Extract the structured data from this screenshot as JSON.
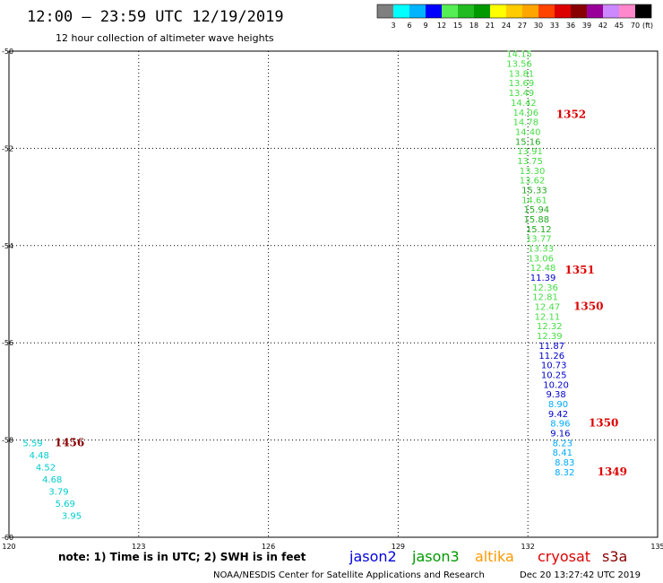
{
  "header": {
    "title": "12:00 — 23:59 UTC 12/19/2019",
    "subtitle": "12 hour collection of altimeter wave heights"
  },
  "colorbar": {
    "unit": "(ft)",
    "labels": [
      "3",
      "6",
      "9",
      "12",
      "15",
      "18",
      "21",
      "24",
      "27",
      "30",
      "33",
      "36",
      "39",
      "42",
      "45",
      "70"
    ],
    "colors": [
      "#7f7f7f",
      "#00ffff",
      "#00b4ff",
      "#0000ff",
      "#55ee55",
      "#22bb22",
      "#009900",
      "#ffff00",
      "#ffcc00",
      "#ffa500",
      "#ff4400",
      "#dd0000",
      "#880000",
      "#990099",
      "#cc88ff",
      "#ff88cc",
      "#000000"
    ]
  },
  "chart_data": {
    "type": "scatter",
    "xlim": [
      120,
      135
    ],
    "ylim": [
      -60,
      -50
    ],
    "x_ticks": [
      "120",
      "123",
      "126",
      "129",
      "132",
      "135"
    ],
    "y_ticks": [
      "-50",
      "-52",
      "-54",
      "-56",
      "-58",
      "-60"
    ],
    "grid": true,
    "observations": [
      {
        "lon": 131.8,
        "lat": -50.05,
        "text": "14.15",
        "color": "#44dd44"
      },
      {
        "lon": 131.8,
        "lat": -50.25,
        "text": "13.56",
        "color": "#44dd44"
      },
      {
        "lon": 131.85,
        "lat": -50.45,
        "text": "13.81",
        "color": "#44dd44"
      },
      {
        "lon": 131.85,
        "lat": -50.65,
        "text": "13.69",
        "color": "#44dd44"
      },
      {
        "lon": 131.85,
        "lat": -50.85,
        "text": "13.49",
        "color": "#44dd44"
      },
      {
        "lon": 131.9,
        "lat": -51.05,
        "text": "14.42",
        "color": "#44dd44"
      },
      {
        "lon": 131.95,
        "lat": -51.25,
        "text": "14.06",
        "color": "#44dd44"
      },
      {
        "lon": 131.95,
        "lat": -51.45,
        "text": "14.78",
        "color": "#44dd44"
      },
      {
        "lon": 132.0,
        "lat": -51.65,
        "text": "14.40",
        "color": "#44dd44"
      },
      {
        "lon": 132.0,
        "lat": -51.85,
        "text": "15.16",
        "color": "#22aa22"
      },
      {
        "lon": 132.05,
        "lat": -52.05,
        "text": "13.91",
        "color": "#44dd44"
      },
      {
        "lon": 132.05,
        "lat": -52.25,
        "text": "13.75",
        "color": "#44dd44"
      },
      {
        "lon": 132.1,
        "lat": -52.45,
        "text": "13.30",
        "color": "#44dd44"
      },
      {
        "lon": 132.1,
        "lat": -52.65,
        "text": "13.62",
        "color": "#44dd44"
      },
      {
        "lon": 132.15,
        "lat": -52.85,
        "text": "15.33",
        "color": "#22aa22"
      },
      {
        "lon": 132.15,
        "lat": -53.05,
        "text": "14.61",
        "color": "#44dd44"
      },
      {
        "lon": 132.2,
        "lat": -53.25,
        "text": "15.94",
        "color": "#22aa22"
      },
      {
        "lon": 132.2,
        "lat": -53.45,
        "text": "15.88",
        "color": "#22aa22"
      },
      {
        "lon": 132.25,
        "lat": -53.65,
        "text": "15.12",
        "color": "#22aa22"
      },
      {
        "lon": 132.25,
        "lat": -53.85,
        "text": "13.77",
        "color": "#44dd44"
      },
      {
        "lon": 132.3,
        "lat": -54.05,
        "text": "13.33",
        "color": "#44dd44"
      },
      {
        "lon": 132.3,
        "lat": -54.25,
        "text": "13.06",
        "color": "#44dd44"
      },
      {
        "lon": 132.35,
        "lat": -54.45,
        "text": "12.48",
        "color": "#44dd44"
      },
      {
        "lon": 132.35,
        "lat": -54.65,
        "text": "11.39",
        "color": "#0000cc"
      },
      {
        "lon": 132.4,
        "lat": -54.85,
        "text": "12.36",
        "color": "#44dd44"
      },
      {
        "lon": 132.4,
        "lat": -55.05,
        "text": "12.81",
        "color": "#44dd44"
      },
      {
        "lon": 132.45,
        "lat": -55.25,
        "text": "12.47",
        "color": "#44dd44"
      },
      {
        "lon": 132.45,
        "lat": -55.45,
        "text": "12.11",
        "color": "#44dd44"
      },
      {
        "lon": 132.5,
        "lat": -55.65,
        "text": "12.32",
        "color": "#44dd44"
      },
      {
        "lon": 132.5,
        "lat": -55.85,
        "text": "12.39",
        "color": "#44dd44"
      },
      {
        "lon": 132.55,
        "lat": -56.05,
        "text": "11.87",
        "color": "#0000cc"
      },
      {
        "lon": 132.55,
        "lat": -56.25,
        "text": "11.26",
        "color": "#0000cc"
      },
      {
        "lon": 132.6,
        "lat": -56.45,
        "text": "10.73",
        "color": "#0000cc"
      },
      {
        "lon": 132.6,
        "lat": -56.65,
        "text": "10.25",
        "color": "#0000cc"
      },
      {
        "lon": 132.65,
        "lat": -56.85,
        "text": "10.20",
        "color": "#0000cc"
      },
      {
        "lon": 132.65,
        "lat": -57.05,
        "text": "9.38",
        "color": "#0000cc"
      },
      {
        "lon": 132.7,
        "lat": -57.25,
        "text": "8.90",
        "color": "#00aaff"
      },
      {
        "lon": 132.7,
        "lat": -57.45,
        "text": "9.42",
        "color": "#0000cc"
      },
      {
        "lon": 132.75,
        "lat": -57.65,
        "text": "8.96",
        "color": "#00aaff"
      },
      {
        "lon": 132.75,
        "lat": -57.85,
        "text": "9.16",
        "color": "#0000cc"
      },
      {
        "lon": 132.8,
        "lat": -58.05,
        "text": "8.23",
        "color": "#00aaff"
      },
      {
        "lon": 132.8,
        "lat": -58.25,
        "text": "8.41",
        "color": "#00aaff"
      },
      {
        "lon": 132.85,
        "lat": -58.45,
        "text": "8.83",
        "color": "#00aaff"
      },
      {
        "lon": 132.85,
        "lat": -58.65,
        "text": "8.32",
        "color": "#00aaff"
      },
      {
        "lon": 120.55,
        "lat": -58.05,
        "text": "5.59",
        "color": "#00cccc"
      },
      {
        "lon": 120.7,
        "lat": -58.3,
        "text": "4.48",
        "color": "#00cccc"
      },
      {
        "lon": 120.85,
        "lat": -58.55,
        "text": "4.52",
        "color": "#00cccc"
      },
      {
        "lon": 121.0,
        "lat": -58.8,
        "text": "4.68",
        "color": "#00cccc"
      },
      {
        "lon": 121.15,
        "lat": -59.05,
        "text": "3.79",
        "color": "#00cccc"
      },
      {
        "lon": 121.3,
        "lat": -59.3,
        "text": "5.69",
        "color": "#00cccc"
      },
      {
        "lon": 121.45,
        "lat": -59.55,
        "text": "3.95",
        "color": "#00cccc"
      }
    ],
    "timestamps": [
      {
        "lon": 133.0,
        "lat": -51.3,
        "text": "1352",
        "color": "#dd0000"
      },
      {
        "lon": 133.2,
        "lat": -54.5,
        "text": "1351",
        "color": "#dd0000"
      },
      {
        "lon": 133.4,
        "lat": -55.25,
        "text": "1350",
        "color": "#dd0000"
      },
      {
        "lon": 133.75,
        "lat": -57.65,
        "text": "1350",
        "color": "#dd0000"
      },
      {
        "lon": 133.95,
        "lat": -58.65,
        "text": "1349",
        "color": "#dd0000"
      },
      {
        "lon": 121.4,
        "lat": -58.05,
        "text": "1456",
        "color": "#880000"
      }
    ]
  },
  "footer": {
    "note": "note:  1) Time is in UTC;  2) SWH is in feet",
    "legend": [
      {
        "name": "jason2",
        "color": "#0000dd"
      },
      {
        "name": "jason3",
        "color": "#009900"
      },
      {
        "name": "altika",
        "color": "#ff9900"
      },
      {
        "name": "cryosat",
        "color": "#dd0000"
      },
      {
        "name": "s3a",
        "color": "#880000"
      }
    ],
    "credit": "NOAA/NESDIS Center for Satellite Applications and Research",
    "date": "Dec 20 13:27:42 UTC 2019"
  }
}
